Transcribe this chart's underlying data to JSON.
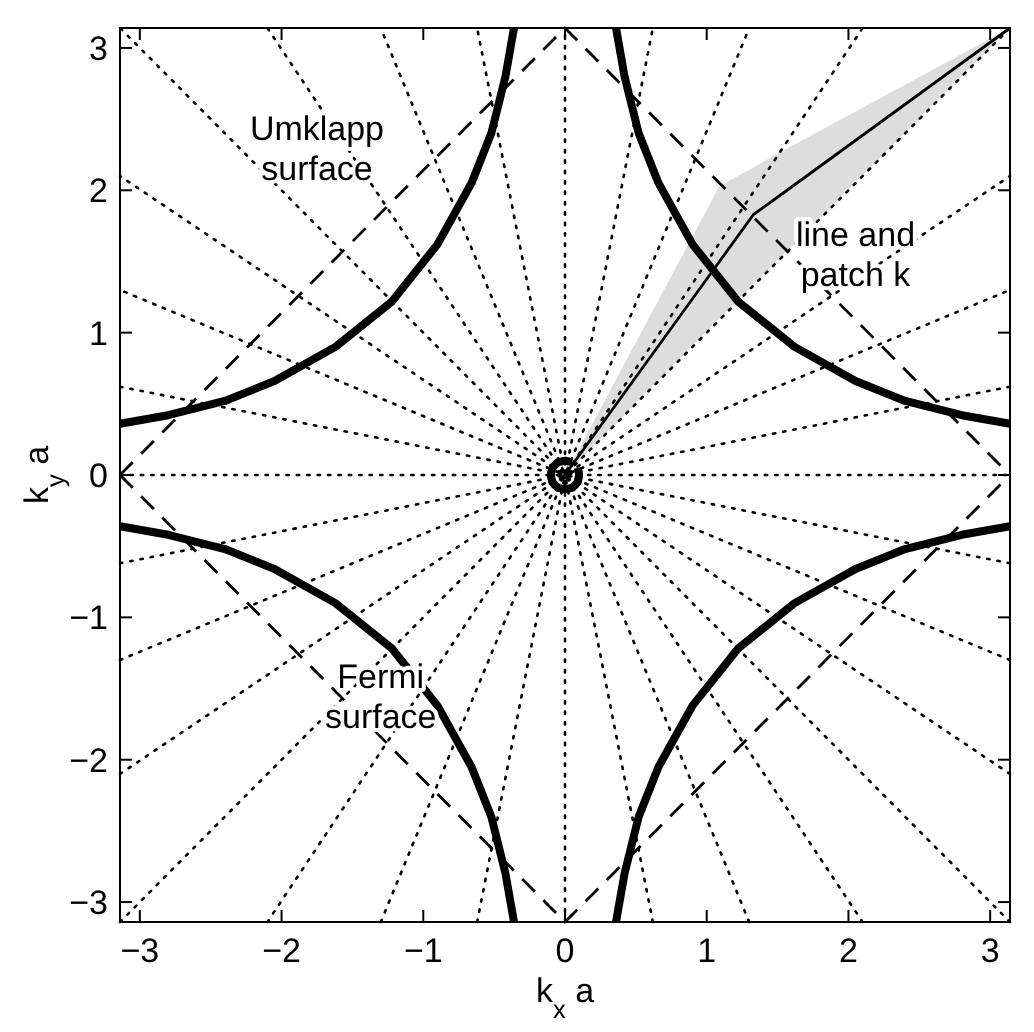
{
  "chart_data": {
    "type": "line",
    "xlabel": "k$_{x}$ a",
    "ylabel": "k$_{y}$ a",
    "xlim": [
      -3.14,
      3.14
    ],
    "ylim": [
      -3.14,
      3.14
    ],
    "xticks": [
      -3,
      -2,
      -1,
      0,
      1,
      2,
      3
    ],
    "yticks": [
      -3,
      -2,
      -1,
      0,
      1,
      2,
      3
    ],
    "series": [
      {
        "type": "line",
        "line_style": "dotted",
        "color": "#000000",
        "x": [
          -3.14,
          3.14
        ],
        "values": [
          0,
          0
        ]
      },
      {
        "type": "line",
        "line_style": "dotted",
        "color": "#000000",
        "x": [
          -3.14,
          3.14
        ],
        "values": [
          -0.62,
          0.62
        ]
      },
      {
        "type": "line",
        "line_style": "dotted",
        "color": "#000000",
        "x": [
          -3.14,
          3.14
        ],
        "values": [
          -1.3,
          1.3
        ]
      },
      {
        "type": "line",
        "line_style": "dotted",
        "color": "#000000",
        "x": [
          -3.14,
          3.14
        ],
        "values": [
          -2.1,
          2.1
        ]
      },
      {
        "type": "line",
        "line_style": "dotted",
        "color": "#000000",
        "x": [
          -3.14,
          3.14
        ],
        "values": [
          -3.14,
          3.14
        ]
      },
      {
        "type": "line",
        "line_style": "dotted",
        "color": "#000000",
        "x": [
          -2.1,
          2.1
        ],
        "values": [
          -3.14,
          3.14
        ]
      },
      {
        "type": "line",
        "line_style": "dotted",
        "color": "#000000",
        "x": [
          -1.3,
          1.3
        ],
        "values": [
          -3.14,
          3.14
        ]
      },
      {
        "type": "line",
        "line_style": "dotted",
        "color": "#000000",
        "x": [
          -0.62,
          0.62
        ],
        "values": [
          -3.14,
          3.14
        ]
      },
      {
        "type": "line",
        "line_style": "dotted",
        "color": "#000000",
        "x": [
          0,
          0
        ],
        "values": [
          -3.14,
          3.14
        ]
      },
      {
        "type": "line",
        "line_style": "dotted",
        "color": "#000000",
        "x": [
          0.62,
          -0.62
        ],
        "values": [
          -3.14,
          3.14
        ]
      },
      {
        "type": "line",
        "line_style": "dotted",
        "color": "#000000",
        "x": [
          1.3,
          -1.3
        ],
        "values": [
          -3.14,
          3.14
        ]
      },
      {
        "type": "line",
        "line_style": "dotted",
        "color": "#000000",
        "x": [
          2.1,
          -2.1
        ],
        "values": [
          -3.14,
          3.14
        ]
      },
      {
        "type": "line",
        "line_style": "dotted",
        "color": "#000000",
        "x": [
          3.14,
          -3.14
        ],
        "values": [
          -3.14,
          3.14
        ]
      },
      {
        "type": "line",
        "line_style": "dotted",
        "color": "#000000",
        "x": [
          3.14,
          -3.14
        ],
        "values": [
          -2.1,
          2.1
        ]
      },
      {
        "type": "line",
        "line_style": "dotted",
        "color": "#000000",
        "x": [
          3.14,
          -3.14
        ],
        "values": [
          -1.3,
          1.3
        ]
      },
      {
        "type": "line",
        "line_style": "dotted",
        "color": "#000000",
        "x": [
          3.14,
          -3.14
        ],
        "values": [
          -0.62,
          0.62
        ]
      },
      {
        "type": "line",
        "line_style": "solid",
        "color": "#000000",
        "x": [
          0,
          1.09,
          1.33,
          1.47,
          3.14
        ],
        "values": [
          0,
          1.5,
          1.83,
          1.93,
          3.14
        ],
        "lower": [
          0,
          1.1,
          1.34,
          1.48,
          3.14
        ],
        "upper": [
          0,
          2.03,
          2.16,
          2.24,
          3.14
        ]
      },
      {
        "type": "line",
        "line_style": "dashed",
        "color": "#000000",
        "x": [
          -3.14,
          0,
          3.14
        ],
        "values": [
          0,
          3.14,
          0
        ]
      },
      {
        "type": "line",
        "line_style": "dashed",
        "color": "#000000",
        "x": [
          -3.14,
          0,
          3.14
        ],
        "values": [
          0,
          -3.14,
          0
        ]
      },
      {
        "type": "line",
        "line_style": "solid",
        "color": "#000000",
        "x": [
          0.36,
          0.42,
          0.52,
          0.66,
          0.9,
          1.22,
          1.62,
          2.05,
          2.4,
          2.8,
          3.14
        ],
        "values": [
          3.14,
          2.8,
          2.4,
          2.05,
          1.62,
          1.22,
          0.9,
          0.66,
          0.52,
          0.42,
          0.36
        ]
      },
      {
        "type": "line",
        "line_style": "solid",
        "color": "#000000",
        "x": [
          -0.36,
          -0.42,
          -0.52,
          -0.66,
          -0.9,
          -1.22,
          -1.62,
          -2.05,
          -2.4,
          -2.8,
          -3.14
        ],
        "values": [
          3.14,
          2.8,
          2.4,
          2.05,
          1.62,
          1.22,
          0.9,
          0.66,
          0.52,
          0.42,
          0.36
        ]
      },
      {
        "type": "line",
        "line_style": "solid",
        "color": "#000000",
        "x": [
          -0.36,
          -0.42,
          -0.52,
          -0.66,
          -0.9,
          -1.22,
          -1.62,
          -2.05,
          -2.4,
          -2.8,
          -3.14
        ],
        "values": [
          -3.14,
          -2.8,
          -2.4,
          -2.05,
          -1.62,
          -1.22,
          -0.9,
          -0.66,
          -0.52,
          -0.42,
          -0.36
        ]
      },
      {
        "type": "line",
        "line_style": "solid",
        "color": "#000000",
        "x": [
          0.36,
          0.42,
          0.52,
          0.66,
          0.9,
          1.22,
          1.62,
          2.05,
          2.4,
          2.8,
          3.14
        ],
        "values": [
          -3.14,
          -2.8,
          -2.4,
          -2.05,
          -1.62,
          -1.22,
          -0.9,
          -0.66,
          -0.52,
          -0.42,
          -0.36
        ]
      },
      {
        "type": "line",
        "line_style": "solid",
        "color": "#000000",
        "x": [
          0.05,
          0,
          -0.05,
          -0.09,
          -0.1,
          -0.09,
          -0.05,
          0,
          0.05,
          0.09,
          0.1,
          0.09
        ],
        "values": [
          0.09,
          0.1,
          0.09,
          0.05,
          0,
          -0.05,
          -0.09,
          -0.1,
          -0.09,
          -0.05,
          0,
          0.05
        ]
      }
    ],
    "annotations": [
      "Umklapp\nsurface",
      "line and\npatch k",
      "Fermi\nsurface"
    ]
  }
}
